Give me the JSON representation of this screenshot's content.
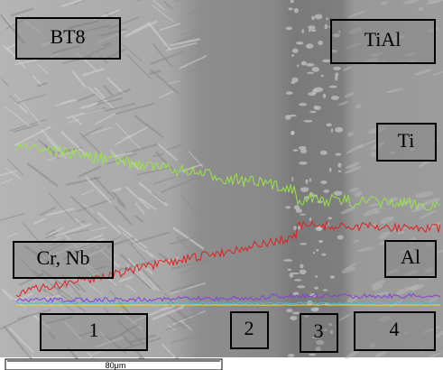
{
  "labels": {
    "left_alloy": "BT8",
    "right_alloy": "TiAl",
    "element_ti": "Ti",
    "element_cr_nb": "Cr, Nb",
    "element_al": "Al"
  },
  "zones": [
    "1",
    "2",
    "3",
    "4"
  ],
  "scale_bar": "80μm"
}
